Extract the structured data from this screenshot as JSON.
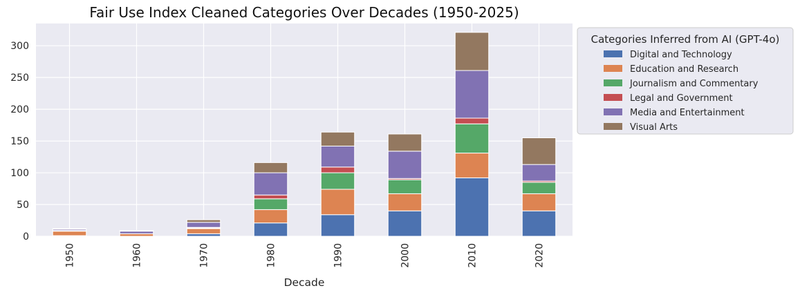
{
  "chart_data": {
    "type": "bar",
    "stacked": true,
    "title": "Fair Use Index Cleaned Categories Over Decades (1950-2025)",
    "xlabel": "Decade",
    "ylabel": "",
    "ylim": [
      0,
      335
    ],
    "yticks": [
      0,
      50,
      100,
      150,
      200,
      250,
      300
    ],
    "grid": true,
    "legend_position": "outside-top-right",
    "legend_title": "Categories Inferred from AI (GPT-4o)",
    "categories": [
      "1950",
      "1960",
      "1970",
      "1980",
      "1990",
      "2000",
      "2010",
      "2020"
    ],
    "series": [
      {
        "name": "Digital and Technology",
        "color": "#4c72b0",
        "values": [
          1,
          0,
          4,
          21,
          34,
          40,
          92,
          40
        ]
      },
      {
        "name": "Education and Research",
        "color": "#dd8452",
        "values": [
          7,
          4,
          8,
          21,
          40,
          27,
          39,
          27
        ]
      },
      {
        "name": "Journalism and Commentary",
        "color": "#55a868",
        "values": [
          0,
          0,
          1,
          17,
          26,
          22,
          46,
          18
        ]
      },
      {
        "name": "Legal and Government",
        "color": "#c44e52",
        "values": [
          1,
          0,
          1,
          6,
          9,
          2,
          9,
          2
        ]
      },
      {
        "name": "Media and Entertainment",
        "color": "#8172b3",
        "values": [
          2,
          4,
          8,
          35,
          33,
          43,
          75,
          26
        ]
      },
      {
        "name": "Visual Arts",
        "color": "#937860",
        "values": [
          1,
          1,
          4,
          16,
          22,
          27,
          60,
          42
        ]
      }
    ]
  },
  "colors": {
    "plot_background": "#eaeaf2",
    "grid": "#ffffff",
    "legend_background": "#eaeaf2",
    "legend_border": "#cccccc"
  }
}
